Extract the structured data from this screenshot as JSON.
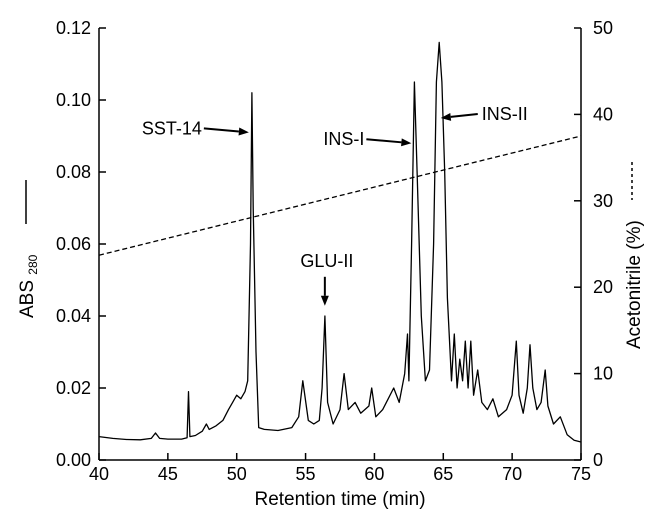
{
  "chart_data": {
    "type": "line",
    "xlabel": "Retention time (min)",
    "ylabel_left_main": "ABS",
    "ylabel_left_sub": "280",
    "ylabel_right": "Acetonitrile (%)",
    "xlim": [
      40,
      75
    ],
    "ylim_left": [
      0,
      0.12
    ],
    "ylim_right": [
      0,
      50
    ],
    "x_ticks": [
      "40",
      "45",
      "50",
      "55",
      "60",
      "65",
      "70",
      "75"
    ],
    "y_left_ticks": [
      "0.00",
      "0.02",
      "0.04",
      "0.06",
      "0.08",
      "0.10",
      "0.12"
    ],
    "y_right_ticks": [
      "0",
      "10",
      "20",
      "30",
      "40",
      "50"
    ],
    "series": [
      {
        "axis": "left",
        "style": "solid",
        "points": [
          [
            40,
            0.0065
          ],
          [
            41,
            0.006
          ],
          [
            42,
            0.0057
          ],
          [
            43,
            0.0056
          ],
          [
            43.8,
            0.006
          ],
          [
            44.1,
            0.0075
          ],
          [
            44.4,
            0.006
          ],
          [
            45,
            0.0058
          ],
          [
            46,
            0.0058
          ],
          [
            46.4,
            0.0062
          ],
          [
            46.5,
            0.019
          ],
          [
            46.6,
            0.0065
          ],
          [
            47,
            0.0068
          ],
          [
            47.5,
            0.008
          ],
          [
            47.8,
            0.01
          ],
          [
            48,
            0.0085
          ],
          [
            48.5,
            0.0095
          ],
          [
            49,
            0.011
          ],
          [
            49.4,
            0.014
          ],
          [
            49.7,
            0.016
          ],
          [
            50,
            0.018
          ],
          [
            50.3,
            0.017
          ],
          [
            50.6,
            0.019
          ],
          [
            50.8,
            0.022
          ],
          [
            51.0,
            0.06
          ],
          [
            51.1,
            0.102
          ],
          [
            51.2,
            0.07
          ],
          [
            51.4,
            0.03
          ],
          [
            51.6,
            0.009
          ],
          [
            52,
            0.0085
          ],
          [
            53,
            0.0082
          ],
          [
            54,
            0.009
          ],
          [
            54.5,
            0.012
          ],
          [
            54.8,
            0.022
          ],
          [
            55.2,
            0.011
          ],
          [
            55.6,
            0.01
          ],
          [
            56,
            0.011
          ],
          [
            56.2,
            0.02
          ],
          [
            56.4,
            0.04
          ],
          [
            56.6,
            0.016
          ],
          [
            57,
            0.01
          ],
          [
            57.5,
            0.014
          ],
          [
            57.8,
            0.024
          ],
          [
            58.1,
            0.014
          ],
          [
            58.6,
            0.016
          ],
          [
            59,
            0.013
          ],
          [
            59.6,
            0.015
          ],
          [
            59.8,
            0.02
          ],
          [
            60.1,
            0.012
          ],
          [
            60.6,
            0.014
          ],
          [
            61,
            0.017
          ],
          [
            61.4,
            0.02
          ],
          [
            61.8,
            0.016
          ],
          [
            62.2,
            0.024
          ],
          [
            62.4,
            0.035
          ],
          [
            62.5,
            0.022
          ],
          [
            62.7,
            0.06
          ],
          [
            62.9,
            0.105
          ],
          [
            63.1,
            0.08
          ],
          [
            63.4,
            0.04
          ],
          [
            63.7,
            0.022
          ],
          [
            64,
            0.025
          ],
          [
            64.3,
            0.06
          ],
          [
            64.5,
            0.105
          ],
          [
            64.7,
            0.116
          ],
          [
            64.9,
            0.105
          ],
          [
            65.1,
            0.08
          ],
          [
            65.3,
            0.045
          ],
          [
            65.6,
            0.022
          ],
          [
            65.8,
            0.035
          ],
          [
            66.0,
            0.02
          ],
          [
            66.2,
            0.028
          ],
          [
            66.4,
            0.022
          ],
          [
            66.6,
            0.033
          ],
          [
            66.8,
            0.02
          ],
          [
            67.0,
            0.033
          ],
          [
            67.2,
            0.018
          ],
          [
            67.5,
            0.025
          ],
          [
            67.8,
            0.016
          ],
          [
            68.2,
            0.014
          ],
          [
            68.6,
            0.017
          ],
          [
            69,
            0.012
          ],
          [
            69.6,
            0.014
          ],
          [
            70.0,
            0.018
          ],
          [
            70.3,
            0.033
          ],
          [
            70.5,
            0.018
          ],
          [
            70.8,
            0.013
          ],
          [
            71.1,
            0.02
          ],
          [
            71.3,
            0.032
          ],
          [
            71.5,
            0.02
          ],
          [
            71.8,
            0.014
          ],
          [
            72.1,
            0.016
          ],
          [
            72.4,
            0.025
          ],
          [
            72.6,
            0.015
          ],
          [
            73,
            0.01
          ],
          [
            73.5,
            0.012
          ],
          [
            74,
            0.007
          ],
          [
            74.5,
            0.0055
          ],
          [
            75,
            0.005
          ]
        ]
      },
      {
        "axis": "right",
        "style": "dashed",
        "points": [
          [
            40,
            23.7
          ],
          [
            75,
            37.5
          ]
        ]
      }
    ],
    "annotations": [
      {
        "label": "SST-14",
        "target_x": 51.1,
        "target_y": 0.091,
        "anchor": "left"
      },
      {
        "label": "INS-I",
        "target_x": 62.9,
        "target_y": 0.088,
        "anchor": "left"
      },
      {
        "label": "INS-II",
        "target_x": 64.6,
        "target_y": 0.095,
        "anchor": "right"
      },
      {
        "label": "GLU-II",
        "target_x": 56.4,
        "target_y": 0.042,
        "anchor": "above"
      }
    ]
  }
}
